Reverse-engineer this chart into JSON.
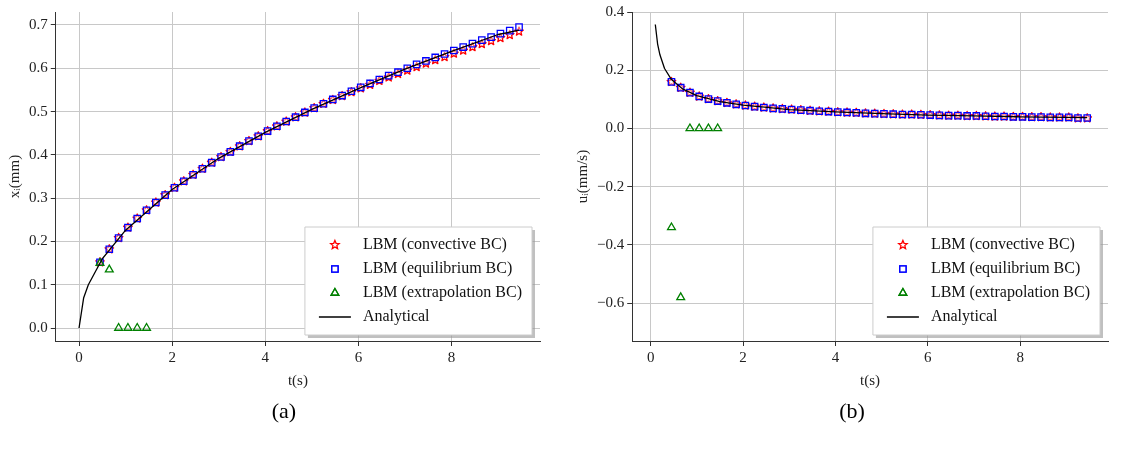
{
  "chart_data": [
    {
      "type": "scatter",
      "xlabel": "t(s)",
      "ylabel": "xᵢ(mm)",
      "annotations": [
        "(a)"
      ],
      "xlim": [
        -0.5,
        9.9
      ],
      "ylim": [
        -0.03,
        0.73
      ],
      "xticks": [
        0,
        2,
        4,
        6,
        8
      ],
      "yticks": [
        {
          "value": 0,
          "label": "0.0"
        },
        0.1,
        0.2,
        0.3,
        0.4,
        0.5,
        0.6,
        0.7
      ],
      "grid": true,
      "legend": "bottom right",
      "series": [
        {
          "name": "LBM (convective BC)",
          "color": "#ff0000",
          "marker": "star",
          "x": [
            0.45,
            0.65,
            0.85,
            1.05,
            1.25,
            1.45,
            1.65,
            1.85,
            2.05,
            2.25,
            2.45,
            2.65,
            2.85,
            3.05,
            3.25,
            3.45,
            3.65,
            3.85,
            4.05,
            4.25,
            4.45,
            4.65,
            4.85,
            5.05,
            5.25,
            5.45,
            5.65,
            5.85,
            6.05,
            6.25,
            6.45,
            6.65,
            6.85,
            7.05,
            7.25,
            7.45,
            7.65,
            7.85,
            8.05,
            8.25,
            8.45,
            8.65,
            8.85,
            9.05,
            9.25,
            9.45
          ],
          "values": [
            0.152,
            0.182,
            0.208,
            0.232,
            0.253,
            0.272,
            0.29,
            0.307,
            0.324,
            0.339,
            0.354,
            0.368,
            0.382,
            0.395,
            0.407,
            0.42,
            0.432,
            0.443,
            0.455,
            0.466,
            0.477,
            0.487,
            0.498,
            0.508,
            0.518,
            0.527,
            0.536,
            0.545,
            0.554,
            0.562,
            0.571,
            0.579,
            0.587,
            0.595,
            0.603,
            0.611,
            0.619,
            0.626,
            0.634,
            0.641,
            0.649,
            0.656,
            0.663,
            0.67,
            0.677,
            0.685
          ]
        },
        {
          "name": "LBM (equilibrium BC)",
          "color": "#0000ff",
          "marker": "square",
          "x": [
            0.45,
            0.65,
            0.85,
            1.05,
            1.25,
            1.45,
            1.65,
            1.85,
            2.05,
            2.25,
            2.45,
            2.65,
            2.85,
            3.05,
            3.25,
            3.45,
            3.65,
            3.85,
            4.05,
            4.25,
            4.45,
            4.65,
            4.85,
            5.05,
            5.25,
            5.45,
            5.65,
            5.85,
            6.05,
            6.25,
            6.45,
            6.65,
            6.85,
            7.05,
            7.25,
            7.45,
            7.65,
            7.85,
            8.05,
            8.25,
            8.45,
            8.65,
            8.85,
            9.05,
            9.25,
            9.45
          ],
          "values": [
            0.152,
            0.182,
            0.208,
            0.232,
            0.253,
            0.272,
            0.29,
            0.307,
            0.324,
            0.339,
            0.354,
            0.368,
            0.382,
            0.395,
            0.407,
            0.42,
            0.432,
            0.443,
            0.455,
            0.466,
            0.477,
            0.487,
            0.498,
            0.508,
            0.518,
            0.528,
            0.537,
            0.547,
            0.556,
            0.565,
            0.574,
            0.583,
            0.591,
            0.6,
            0.609,
            0.617,
            0.625,
            0.633,
            0.641,
            0.649,
            0.657,
            0.665,
            0.672,
            0.68,
            0.687,
            0.695
          ]
        },
        {
          "name": "LBM (extrapolation BC)",
          "color": "#008000",
          "marker": "triangle",
          "x": [
            0.45,
            0.65,
            0.85,
            1.05,
            1.25,
            1.45
          ],
          "values": [
            0.15,
            0.135,
            0,
            0,
            0,
            0
          ]
        },
        {
          "name": "Analytical",
          "type": "line",
          "color": "#000000",
          "marker": "none",
          "x": [
            0,
            0.1,
            0.2,
            0.5,
            1,
            2,
            3,
            4,
            5,
            6,
            7,
            8,
            9,
            9.45
          ],
          "values": [
            0,
            0.07,
            0.1,
            0.16,
            0.226,
            0.32,
            0.392,
            0.452,
            0.505,
            0.553,
            0.598,
            0.639,
            0.678,
            0.688
          ]
        }
      ]
    },
    {
      "type": "scatter",
      "xlabel": "t(s)",
      "ylabel": "uᵢ(mm/s)",
      "annotations": [
        "(b)"
      ],
      "xlim": [
        -0.4,
        9.9
      ],
      "ylim": [
        -0.73,
        0.4
      ],
      "xticks": [
        0,
        2,
        4,
        6,
        8
      ],
      "yticks": [
        {
          "value": -0.6,
          "label": "−0.6"
        },
        {
          "value": -0.4,
          "label": "−0.4"
        },
        {
          "value": -0.2,
          "label": "−0.2"
        },
        {
          "value": 0,
          "label": "0.0"
        },
        0.2,
        0.4
      ],
      "grid": true,
      "legend": "bottom right",
      "series": [
        {
          "name": "LBM (convective BC)",
          "color": "#ff0000",
          "marker": "star",
          "x": [
            0.45,
            0.65,
            0.85,
            1.05,
            1.25,
            1.45,
            1.65,
            1.85,
            2.05,
            2.25,
            2.45,
            2.65,
            2.85,
            3.05,
            3.25,
            3.45,
            3.65,
            3.85,
            4.05,
            4.25,
            4.45,
            4.65,
            4.85,
            5.05,
            5.25,
            5.45,
            5.65,
            5.85,
            6.05,
            6.25,
            6.45,
            6.65,
            6.85,
            7.05,
            7.25,
            7.45,
            7.65,
            7.85,
            8.05,
            8.25,
            8.45,
            8.65,
            8.85,
            9.05,
            9.25,
            9.45
          ],
          "values": [
            0.16,
            0.14,
            0.123,
            0.11,
            0.101,
            0.094,
            0.088,
            0.083,
            0.079,
            0.075,
            0.072,
            0.069,
            0.067,
            0.065,
            0.063,
            0.061,
            0.059,
            0.058,
            0.056,
            0.055,
            0.054,
            0.052,
            0.051,
            0.05,
            0.049,
            0.048,
            0.048,
            0.047,
            0.046,
            0.045,
            0.044,
            0.044,
            0.043,
            0.043,
            0.042,
            0.041,
            0.041,
            0.04,
            0.04,
            0.039,
            0.039,
            0.038,
            0.038,
            0.038,
            0.035,
            0.035
          ]
        },
        {
          "name": "LBM (equilibrium BC)",
          "color": "#0000ff",
          "marker": "square",
          "x": [
            0.45,
            0.65,
            0.85,
            1.05,
            1.25,
            1.45,
            1.65,
            1.85,
            2.05,
            2.25,
            2.45,
            2.65,
            2.85,
            3.05,
            3.25,
            3.45,
            3.65,
            3.85,
            4.05,
            4.25,
            4.45,
            4.65,
            4.85,
            5.05,
            5.25,
            5.45,
            5.65,
            5.85,
            6.05,
            6.25,
            6.45,
            6.65,
            6.85,
            7.05,
            7.25,
            7.45,
            7.65,
            7.85,
            8.05,
            8.25,
            8.45,
            8.65,
            8.85,
            9.05,
            9.25,
            9.45
          ],
          "values": [
            0.16,
            0.14,
            0.123,
            0.11,
            0.101,
            0.094,
            0.088,
            0.083,
            0.079,
            0.075,
            0.072,
            0.069,
            0.067,
            0.065,
            0.063,
            0.061,
            0.059,
            0.058,
            0.056,
            0.055,
            0.054,
            0.052,
            0.051,
            0.05,
            0.049,
            0.048,
            0.048,
            0.047,
            0.046,
            0.045,
            0.044,
            0.044,
            0.043,
            0.043,
            0.042,
            0.041,
            0.041,
            0.04,
            0.04,
            0.039,
            0.039,
            0.038,
            0.038,
            0.038,
            0.036,
            0.036
          ]
        },
        {
          "name": "LBM (extrapolation BC)",
          "color": "#008000",
          "marker": "triangle",
          "x": [
            0.45,
            0.65,
            0.85,
            1.05,
            1.25,
            1.45
          ],
          "values": [
            -0.34,
            -0.58,
            0,
            0,
            0,
            0
          ]
        },
        {
          "name": "Analytical",
          "type": "line",
          "color": "#000000",
          "marker": "none",
          "x": [
            0.1,
            0.15,
            0.2,
            0.3,
            0.45,
            0.7,
            1,
            1.5,
            2,
            3,
            4,
            5,
            6,
            7,
            8,
            9,
            9.45
          ],
          "values": [
            0.357,
            0.29,
            0.253,
            0.206,
            0.168,
            0.135,
            0.113,
            0.092,
            0.08,
            0.065,
            0.057,
            0.051,
            0.046,
            0.043,
            0.04,
            0.038,
            0.037
          ]
        }
      ]
    }
  ]
}
